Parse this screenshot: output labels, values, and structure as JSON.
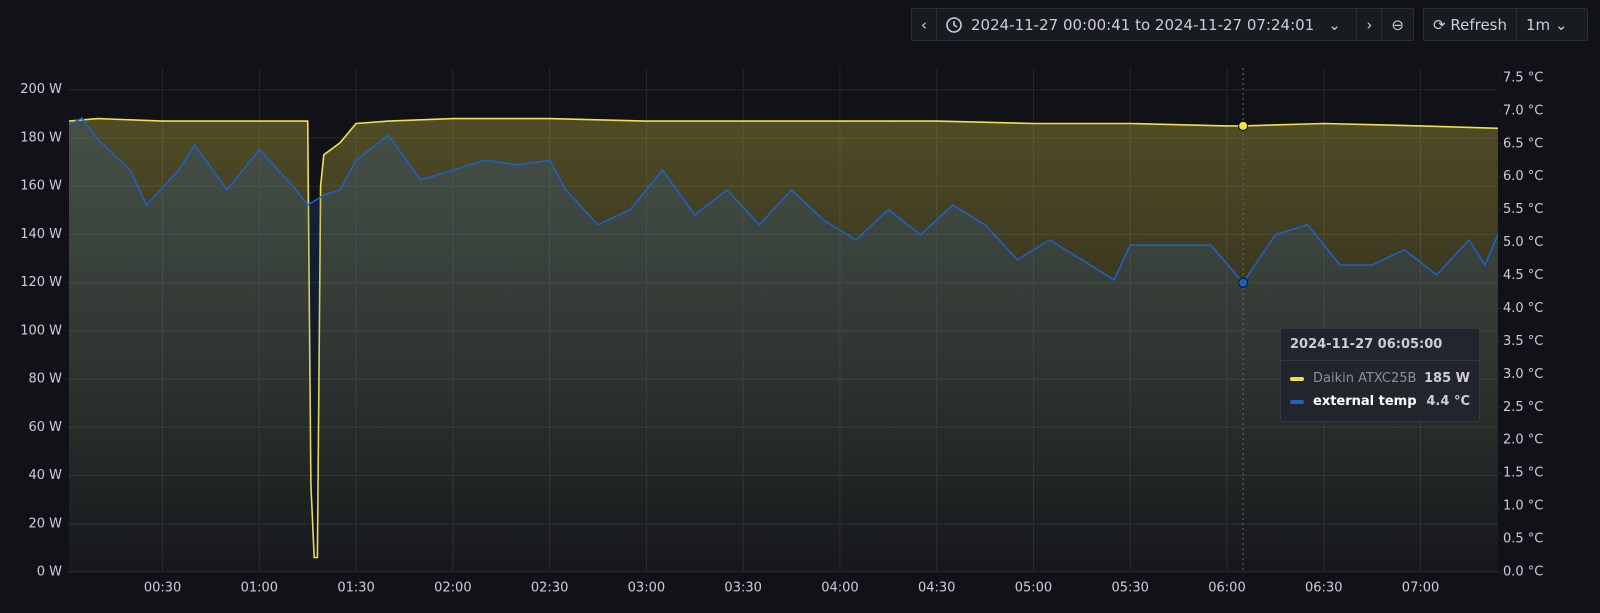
{
  "toolbar": {
    "time_range": "2024-11-27 00:00:41 to 2024-11-27 07:24:01",
    "refresh": "Refresh",
    "interval": "1m"
  },
  "chart_data": {
    "type": "line",
    "xlim": [
      "00:00:41",
      "07:24:01"
    ],
    "xticks": [
      "00:30",
      "01:00",
      "01:30",
      "02:00",
      "02:30",
      "03:00",
      "03:30",
      "04:00",
      "04:30",
      "05:00",
      "05:30",
      "06:00",
      "06:30",
      "07:00"
    ],
    "ylim": [
      0,
      209
    ],
    "yticks": [
      {
        "value": 0,
        "label": "0 W"
      },
      {
        "value": 20,
        "label": "20 W"
      },
      {
        "value": 40,
        "label": "40 W"
      },
      {
        "value": 60,
        "label": "60 W"
      },
      {
        "value": 80,
        "label": "80 W"
      },
      {
        "value": 100,
        "label": "100 W"
      },
      {
        "value": 120,
        "label": "120 W"
      },
      {
        "value": 140,
        "label": "140 W"
      },
      {
        "value": 160,
        "label": "160 W"
      },
      {
        "value": 180,
        "label": "180 W"
      },
      {
        "value": 200,
        "label": "200 W"
      }
    ],
    "y2lim": [
      0,
      7.65
    ],
    "y2ticks": [
      {
        "value": 0,
        "label": "0.0 °C"
      },
      {
        "value": 0.5,
        "label": "0.5 °C"
      },
      {
        "value": 1,
        "label": "1.0 °C"
      },
      {
        "value": 1.5,
        "label": "1.5 °C"
      },
      {
        "value": 2,
        "label": "2.0 °C"
      },
      {
        "value": 2.5,
        "label": "2.5 °C"
      },
      {
        "value": 3,
        "label": "3.0 °C"
      },
      {
        "value": 3.5,
        "label": "3.5 °C"
      },
      {
        "value": 4,
        "label": "4.0 °C"
      },
      {
        "value": 4.5,
        "label": "4.5 °C"
      },
      {
        "value": 5,
        "label": "5.0 °C"
      },
      {
        "value": 5.5,
        "label": "5.5 °C"
      },
      {
        "value": 6,
        "label": "6.0 °C"
      },
      {
        "value": 6.5,
        "label": "6.5 °C"
      },
      {
        "value": 7,
        "label": "7.0 °C"
      },
      {
        "value": 7.5,
        "label": "7.5 °C"
      }
    ],
    "grid": true,
    "series": [
      {
        "name": "Daikin ATXC25B",
        "color": "#f2e04b",
        "x": [
          "00:01",
          "00:10",
          "00:30",
          "01:00",
          "01:15",
          "01:16",
          "01:17",
          "01:18",
          "01:19",
          "01:20",
          "01:25",
          "01:30",
          "01:40",
          "02:00",
          "02:30",
          "03:00",
          "03:30",
          "04:00",
          "04:30",
          "05:00",
          "05:30",
          "06:00",
          "06:05",
          "06:30",
          "07:00",
          "07:24"
        ],
        "values": [
          187,
          188,
          187,
          187,
          187,
          36,
          6,
          6,
          160,
          173,
          178,
          186,
          187,
          188,
          188,
          187,
          187,
          187,
          187,
          186,
          186,
          185,
          185,
          186,
          185,
          184
        ]
      },
      {
        "name": "external temp",
        "color": "#1f60c4",
        "axis": "y2",
        "x": [
          "00:01",
          "00:05",
          "00:10",
          "00:20",
          "00:25",
          "00:35",
          "00:40",
          "00:50",
          "01:00",
          "01:10",
          "01:15",
          "01:20",
          "01:25",
          "01:30",
          "01:40",
          "01:50",
          "02:00",
          "02:10",
          "02:20",
          "02:30",
          "02:35",
          "02:45",
          "02:55",
          "03:05",
          "03:15",
          "03:25",
          "03:35",
          "03:45",
          "03:55",
          "04:05",
          "04:15",
          "04:25",
          "04:35",
          "04:45",
          "04:55",
          "05:05",
          "05:15",
          "05:25",
          "05:30",
          "05:45",
          "05:55",
          "06:05",
          "06:15",
          "06:25",
          "06:35",
          "06:45",
          "06:55",
          "07:05",
          "07:15",
          "07:20",
          "07:24"
        ],
        "values": [
          6.79,
          6.89,
          6.56,
          6.1,
          5.57,
          6.1,
          6.48,
          5.8,
          6.41,
          5.88,
          5.57,
          5.72,
          5.8,
          6.25,
          6.63,
          5.95,
          6.1,
          6.25,
          6.18,
          6.25,
          5.8,
          5.27,
          5.5,
          6.1,
          5.42,
          5.8,
          5.27,
          5.8,
          5.34,
          5.04,
          5.5,
          5.12,
          5.57,
          5.27,
          4.74,
          5.04,
          4.74,
          4.43,
          4.96,
          4.96,
          4.96,
          4.39,
          5.12,
          5.27,
          4.66,
          4.66,
          4.89,
          4.51,
          5.04,
          4.66,
          5.12
        ]
      }
    ],
    "tooltip": {
      "time": "2024-11-27 06:05:00",
      "values": [
        "185 W",
        "4.4 °C"
      ]
    }
  }
}
